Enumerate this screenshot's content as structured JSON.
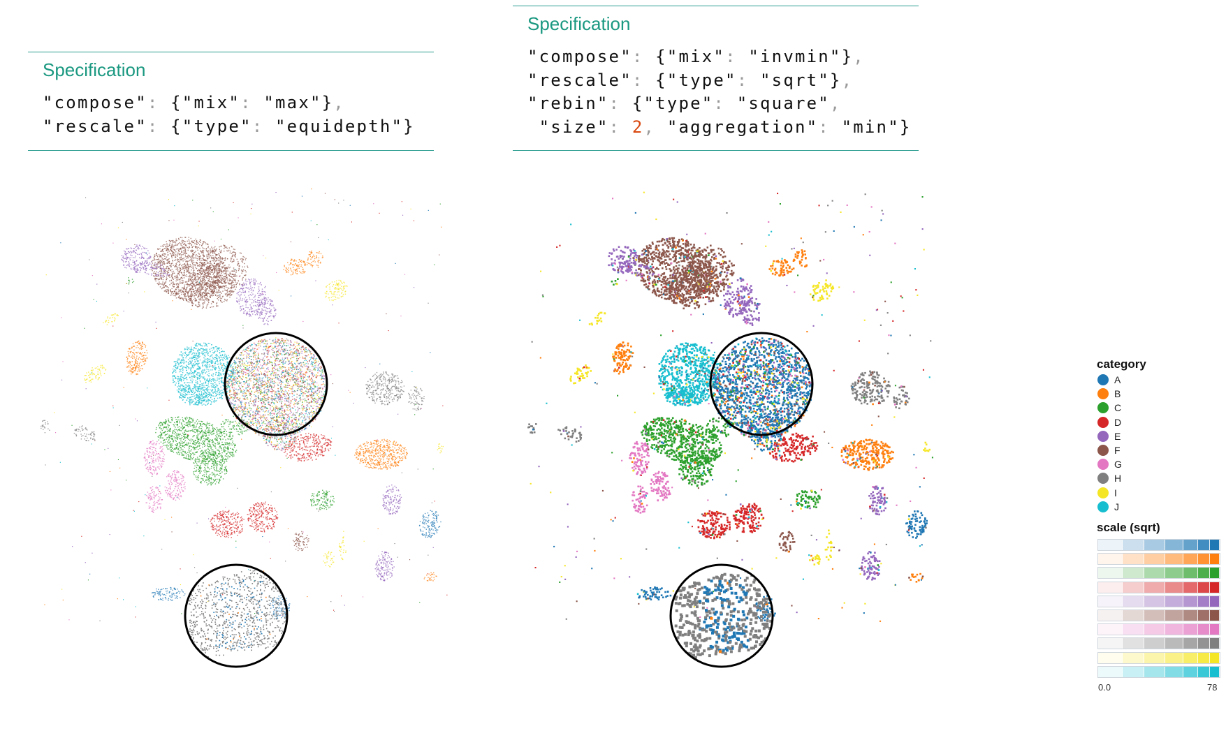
{
  "specs": {
    "left": {
      "title": "Specification",
      "lines": [
        [
          [
            "\"compose\"",
            "s"
          ],
          [
            ": ",
            "p"
          ],
          [
            "{\"mix\"",
            "s"
          ],
          [
            ": ",
            "p"
          ],
          [
            "\"max\"}",
            "s"
          ],
          [
            ",",
            "p"
          ]
        ],
        [
          [
            "\"rescale\"",
            "s"
          ],
          [
            ": ",
            "p"
          ],
          [
            "{\"type\"",
            "s"
          ],
          [
            ": ",
            "p"
          ],
          [
            "\"equidepth\"}",
            "s"
          ]
        ]
      ]
    },
    "right": {
      "title": "Specification",
      "lines": [
        [
          [
            "\"compose\"",
            "s"
          ],
          [
            ": ",
            "p"
          ],
          [
            "{\"mix\"",
            "s"
          ],
          [
            ": ",
            "p"
          ],
          [
            "\"invmin\"}",
            "s"
          ],
          [
            ",",
            "p"
          ]
        ],
        [
          [
            "\"rescale\"",
            "s"
          ],
          [
            ": ",
            "p"
          ],
          [
            "{\"type\"",
            "s"
          ],
          [
            ": ",
            "p"
          ],
          [
            "\"sqrt\"}",
            "s"
          ],
          [
            ",",
            "p"
          ]
        ],
        [
          [
            "\"rebin\"",
            "s"
          ],
          [
            ": ",
            "p"
          ],
          [
            "{\"type\"",
            "s"
          ],
          [
            ": ",
            "p"
          ],
          [
            "\"square\"",
            "s"
          ],
          [
            ",",
            "p"
          ]
        ],
        [
          [
            " \"size\"",
            "s"
          ],
          [
            ": ",
            "p"
          ],
          [
            "2",
            "n"
          ],
          [
            ", ",
            "p"
          ],
          [
            "\"aggregation\"",
            "s"
          ],
          [
            ": ",
            "p"
          ],
          [
            "\"min\"}",
            "s"
          ]
        ]
      ]
    }
  },
  "chart_data": [
    {
      "type": "scatter",
      "id": "left",
      "title": "",
      "compose_mix": "max",
      "rescale": "equidepth",
      "categories": [
        "A",
        "B",
        "C",
        "D",
        "E",
        "F",
        "G",
        "H",
        "I",
        "J"
      ],
      "zoom_lenses": 2,
      "grid": false
    },
    {
      "type": "scatter",
      "id": "right",
      "title": "",
      "compose_mix": "invmin",
      "rescale": "sqrt",
      "rebin": {
        "type": "square",
        "size": 2,
        "aggregation": "min"
      },
      "categories": [
        "A",
        "B",
        "C",
        "D",
        "E",
        "F",
        "G",
        "H",
        "I",
        "J"
      ],
      "zoom_lenses": 2,
      "grid": false
    }
  ],
  "legend": {
    "category_title": "category",
    "categories": [
      {
        "label": "A",
        "color": "#1f77b4"
      },
      {
        "label": "B",
        "color": "#ff7f0e"
      },
      {
        "label": "C",
        "color": "#2ca02c"
      },
      {
        "label": "D",
        "color": "#d62728"
      },
      {
        "label": "E",
        "color": "#9467bd"
      },
      {
        "label": "F",
        "color": "#8c564b"
      },
      {
        "label": "G",
        "color": "#e377c2"
      },
      {
        "label": "H",
        "color": "#7f7f7f"
      },
      {
        "label": "I",
        "color": "#f5e625"
      },
      {
        "label": "J",
        "color": "#17becf"
      }
    ],
    "scale_title": "scale (sqrt)",
    "scale_min": "0.0",
    "scale_max": "78"
  }
}
